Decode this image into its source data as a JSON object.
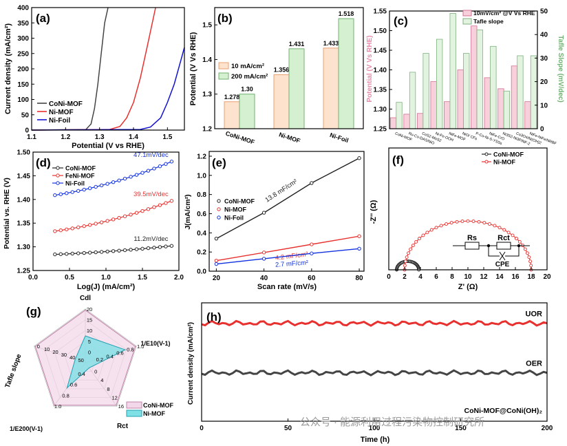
{
  "watermark": "公众号 · 能源利用过程污染物控制研究所",
  "chart_data": [
    {
      "id": "a",
      "panel_label": "(a)",
      "type": "line",
      "xlabel": "Potential (V vs RHE)",
      "ylabel": "Current density (mA/cm²)",
      "xlim": [
        1.1,
        1.55
      ],
      "ylim": [
        0,
        400
      ],
      "xticks": [
        "1.1",
        "1.2",
        "1.3",
        "1.4",
        "1.5"
      ],
      "yticks": [
        "0",
        "50",
        "100",
        "150",
        "200",
        "250",
        "300",
        "350",
        "400"
      ],
      "legend": "bottom-left",
      "series": [
        {
          "name": "CoNi-MOF",
          "color": "#444444",
          "x": [
            1.1,
            1.26,
            1.275,
            1.285,
            1.295,
            1.305,
            1.315,
            1.325
          ],
          "y": [
            0,
            2,
            20,
            70,
            150,
            250,
            350,
            400
          ]
        },
        {
          "name": "Ni-MOF",
          "color": "#e8302e",
          "x": [
            1.1,
            1.33,
            1.36,
            1.38,
            1.4,
            1.42,
            1.44,
            1.465
          ],
          "y": [
            0,
            2,
            12,
            40,
            90,
            170,
            270,
            400
          ]
        },
        {
          "name": "Ni-Foil",
          "color": "#1010d0",
          "x": [
            1.1,
            1.42,
            1.45,
            1.48,
            1.5,
            1.52,
            1.54,
            1.55
          ],
          "y": [
            0,
            2,
            10,
            40,
            90,
            150,
            230,
            270
          ]
        }
      ]
    },
    {
      "id": "b",
      "panel_label": "(b)",
      "type": "bar",
      "ylabel": "Potential (V Vs RHE)",
      "ylim": [
        1.2,
        1.55
      ],
      "yticks": [
        "1.2",
        "1.3",
        "1.4",
        "1.5"
      ],
      "categories": [
        "CoNi-MOF",
        "Ni-MOF",
        "Ni-Foil"
      ],
      "legend": "top-left",
      "series": [
        {
          "name": "10 mA/cm²",
          "color": "#fde2cd",
          "edge": "#e8a070",
          "values": [
            1.278,
            1.356,
            1.433
          ],
          "labels": [
            "1.278",
            "1.356",
            "1.433"
          ]
        },
        {
          "name": "200 mA/cm²",
          "color": "#d4f0d0",
          "edge": "#70b070",
          "values": [
            1.3,
            1.431,
            1.518
          ],
          "labels": [
            "1.30",
            "1.431",
            "1.518"
          ]
        }
      ]
    },
    {
      "id": "c",
      "panel_label": "(c)",
      "type": "bar",
      "ylabel": "Potential (V Vs RHE)",
      "ylabel2": "Tafle Slope (mV/dec)",
      "ylim": [
        1.25,
        1.55
      ],
      "ylim2": [
        0,
        50
      ],
      "yticks": [
        "1.25",
        "1.30",
        "1.35",
        "1.40",
        "1.45",
        "1.50",
        "1.55"
      ],
      "yticks2": [
        "0",
        "10",
        "20",
        "30",
        "40",
        "50"
      ],
      "legend": "top-right",
      "categories": [
        "CoNi-MOF",
        "Ru-Co-DAS/NiO",
        "CoS2-MoS2",
        "Ni-Fe-OOH",
        "NiFe-MOF",
        "NiO/ CFs",
        "P-Co-Ni-S-YSSs",
        "NiFe-CrO",
        "Ni3S2-Ni3P/NF-2",
        "Co3O4/Ni(OH)2",
        "NiFe-NiFe/NRBF"
      ],
      "series": [
        {
          "name": "10mV/cm² @V Vs RHE",
          "color": "#f7d0dc",
          "edge": "#d07090",
          "values": [
            1.278,
            1.287,
            1.289,
            1.37,
            1.319,
            1.4,
            1.512,
            1.38,
            1.352,
            1.41,
            1.319
          ]
        },
        {
          "name": "Tafle slope",
          "color": "#e2f3df",
          "edge": "#80b080",
          "values": [
            11.2,
            24,
            32,
            38,
            49,
            32,
            42,
            35,
            16,
            31,
            31
          ]
        }
      ]
    },
    {
      "id": "d",
      "panel_label": "(d)",
      "type": "scatter",
      "xlabel": "Log(J) (mA/cm²)",
      "ylabel": "Potential vs. RHE (V)",
      "xlim": [
        0.0,
        2.0
      ],
      "ylim": [
        1.25,
        1.5
      ],
      "xticks": [
        "0.0",
        "0.5",
        "1.0",
        "1.5",
        "2.0"
      ],
      "yticks": [
        "1.25",
        "1.30",
        "1.35",
        "1.40",
        "1.45",
        "1.50"
      ],
      "legend": "top-left",
      "series": [
        {
          "name": "CoNi-MOF",
          "color": "#222222",
          "x0": 0.3,
          "x1": 1.9,
          "y0": 1.284,
          "y1": 1.302,
          "annotation": "11.2mV/dec"
        },
        {
          "name": "FeNi-MOF",
          "color": "#e8302e",
          "x0": 0.3,
          "x1": 1.9,
          "y0": 1.333,
          "y1": 1.397,
          "annotation": "39.5mV/dec"
        },
        {
          "name": "Ni-Foil",
          "color": "#1030e0",
          "x0": 0.3,
          "x1": 1.9,
          "y0": 1.409,
          "y1": 1.48,
          "annotation": "47.1mV/dec"
        }
      ]
    },
    {
      "id": "e",
      "panel_label": "(e)",
      "type": "scatter",
      "xlabel": "Scan rate (mV/s)",
      "ylabel": "J(mA/cm²)",
      "xlim": [
        17,
        82
      ],
      "ylim": [
        0.0,
        1.2
      ],
      "xticks": [
        "20",
        "40",
        "60",
        "80"
      ],
      "yticks": [
        "0.0",
        "0.2",
        "0.4",
        "0.6",
        "0.8",
        "1.0",
        "1.2"
      ],
      "legend": "middle-left",
      "series": [
        {
          "name": "CoNi-MOF",
          "color": "#222222",
          "x": [
            20,
            40,
            60,
            80
          ],
          "y": [
            0.34,
            0.61,
            0.92,
            1.18
          ],
          "annotation": "13.8 mF/cm²"
        },
        {
          "name": "Ni-MOF",
          "color": "#e8302e",
          "x": [
            20,
            40,
            60,
            80
          ],
          "y": [
            0.11,
            0.195,
            0.28,
            0.365
          ],
          "annotation": "4.2 mF/cm²"
        },
        {
          "name": "Ni-Foil",
          "color": "#1030e0",
          "x": [
            20,
            40,
            60,
            80
          ],
          "y": [
            0.075,
            0.13,
            0.185,
            0.235
          ],
          "annotation": "2.7 mF/cm²"
        }
      ]
    },
    {
      "id": "f",
      "panel_label": "(f)",
      "type": "scatter",
      "xlabel": "Z' (Ω)",
      "ylabel": "-Z'' (Ω)",
      "xlim": [
        0,
        20
      ],
      "ylim": [
        0,
        20
      ],
      "xticks": [
        "0",
        "2",
        "4",
        "6",
        "8",
        "10",
        "12",
        "14",
        "16",
        "18",
        "20"
      ],
      "legend": "top-right",
      "circuit": {
        "r1": "Rs",
        "r2": "Rct",
        "c": "CPE"
      },
      "series": [
        {
          "name": "CoNi-MOF",
          "color": "#222222",
          "center": 2.4,
          "radius": 1.4
        },
        {
          "name": "Ni-MOF",
          "color": "#e8302e",
          "center": 10.0,
          "radius": 8.0
        }
      ]
    },
    {
      "id": "g",
      "panel_label": "(g)",
      "type": "radar",
      "axes": [
        {
          "label": "Cdl",
          "ticks": [
            "0",
            "5",
            "10",
            "15",
            "20"
          ]
        },
        {
          "label": "1/E10(V-1)",
          "ticks": [
            "0.2",
            "0.4",
            "0.6",
            "0.8",
            "1.0"
          ]
        },
        {
          "label": "Rct",
          "ticks": [
            "0",
            "4",
            "8",
            "12",
            "16"
          ]
        },
        {
          "label": "1/E200(V-1)",
          "ticks": [
            "0.4",
            "0.6",
            "0.8",
            "1.0"
          ]
        },
        {
          "label": "Tafle slope",
          "ticks": [
            "50",
            "40",
            "30",
            "20",
            "10",
            "0"
          ]
        }
      ],
      "legend": "bottom-right",
      "series": [
        {
          "name": "CoNi-MOF",
          "color": "#f2d8e8",
          "edge": "#c080a8",
          "values": [
            0.98,
            0.98,
            0.98,
            0.98,
            0.98
          ]
        },
        {
          "name": "Ni-MOF",
          "color": "#7fe0e6",
          "edge": "#20a0b0",
          "values": [
            0.5,
            0.78,
            0.12,
            0.58,
            0.2
          ]
        }
      ]
    },
    {
      "id": "h",
      "panel_label": "(h)",
      "type": "line",
      "xlabel": "Time (h)",
      "ylabel": "Current density (mA/cm²)",
      "xlim": [
        0,
        200
      ],
      "ylim": [
        0,
        550
      ],
      "xticks": [
        "0",
        "50",
        "100",
        "150",
        "200"
      ],
      "series": [
        {
          "name": "UOR",
          "color": "#e8302e",
          "level": 455
        },
        {
          "name": "OER",
          "color": "#444444",
          "level": 225
        }
      ],
      "annotation": "CoNi-MOF@CoNi(OH)₂"
    }
  ]
}
